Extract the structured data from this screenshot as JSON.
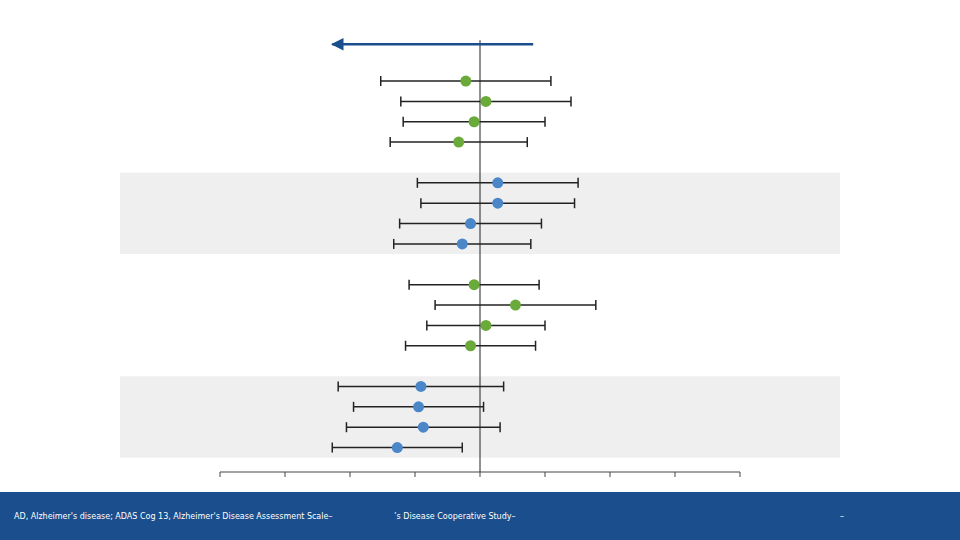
{
  "chart_data": {
    "type": "scatter",
    "x": [
      -0.12,
      0.05,
      -0.05,
      -0.18,
      0.15,
      0.15,
      -0.08,
      -0.15,
      -0.05,
      0.3,
      0.05,
      -0.08,
      -0.5,
      -0.52,
      -0.48,
      -0.7
    ],
    "values": [
      15,
      14,
      13,
      12,
      10,
      9,
      8,
      7,
      5,
      4,
      3,
      2,
      0,
      -1,
      -2,
      -3
    ],
    "x_errors": [
      0.72,
      0.72,
      0.6,
      0.58,
      0.68,
      0.65,
      0.6,
      0.58,
      0.55,
      0.68,
      0.5,
      0.55,
      0.7,
      0.55,
      0.65,
      0.55
    ],
    "colors": [
      "#6aaa3a",
      "#6aaa3a",
      "#6aaa3a",
      "#6aaa3a",
      "#4a86c8",
      "#4a86c8",
      "#4a86c8",
      "#4a86c8",
      "#6aaa3a",
      "#6aaa3a",
      "#6aaa3a",
      "#6aaa3a",
      "#4a86c8",
      "#4a86c8",
      "#4a86c8",
      "#4a86c8"
    ],
    "error_color": "#222222",
    "marker": "circle",
    "xlim": [
      -2.2,
      2.2
    ],
    "ylim": [
      -4.2,
      17.8
    ],
    "xticks": [
      -2.2,
      -1.65,
      -1.1,
      -0.55,
      0,
      0.55,
      1.1,
      1.65,
      2.2
    ],
    "yticks": [],
    "tick_labels": false,
    "grid": false,
    "bands": [
      {
        "y_from": 6.5,
        "y_to": 10.5,
        "color": "#efefef"
      },
      {
        "y_from": -3.5,
        "y_to": 0.5,
        "color": "#efefef"
      }
    ],
    "reference_line": {
      "x": 0,
      "y_from": -4.2,
      "y_to": 17.0,
      "color": "#222222"
    },
    "arrow": {
      "x_from": 0.45,
      "x_to": -1.25,
      "y": 16.8,
      "color": "#1a4e8c"
    },
    "annotations": [
      "AD, Alzheimer's disease; ADAS Cog 13, Alzheimer's Disease Assessment Scale–",
      "’s Disease Cooperative Study–",
      "–"
    ],
    "footer_color": "#1a4e8c"
  }
}
